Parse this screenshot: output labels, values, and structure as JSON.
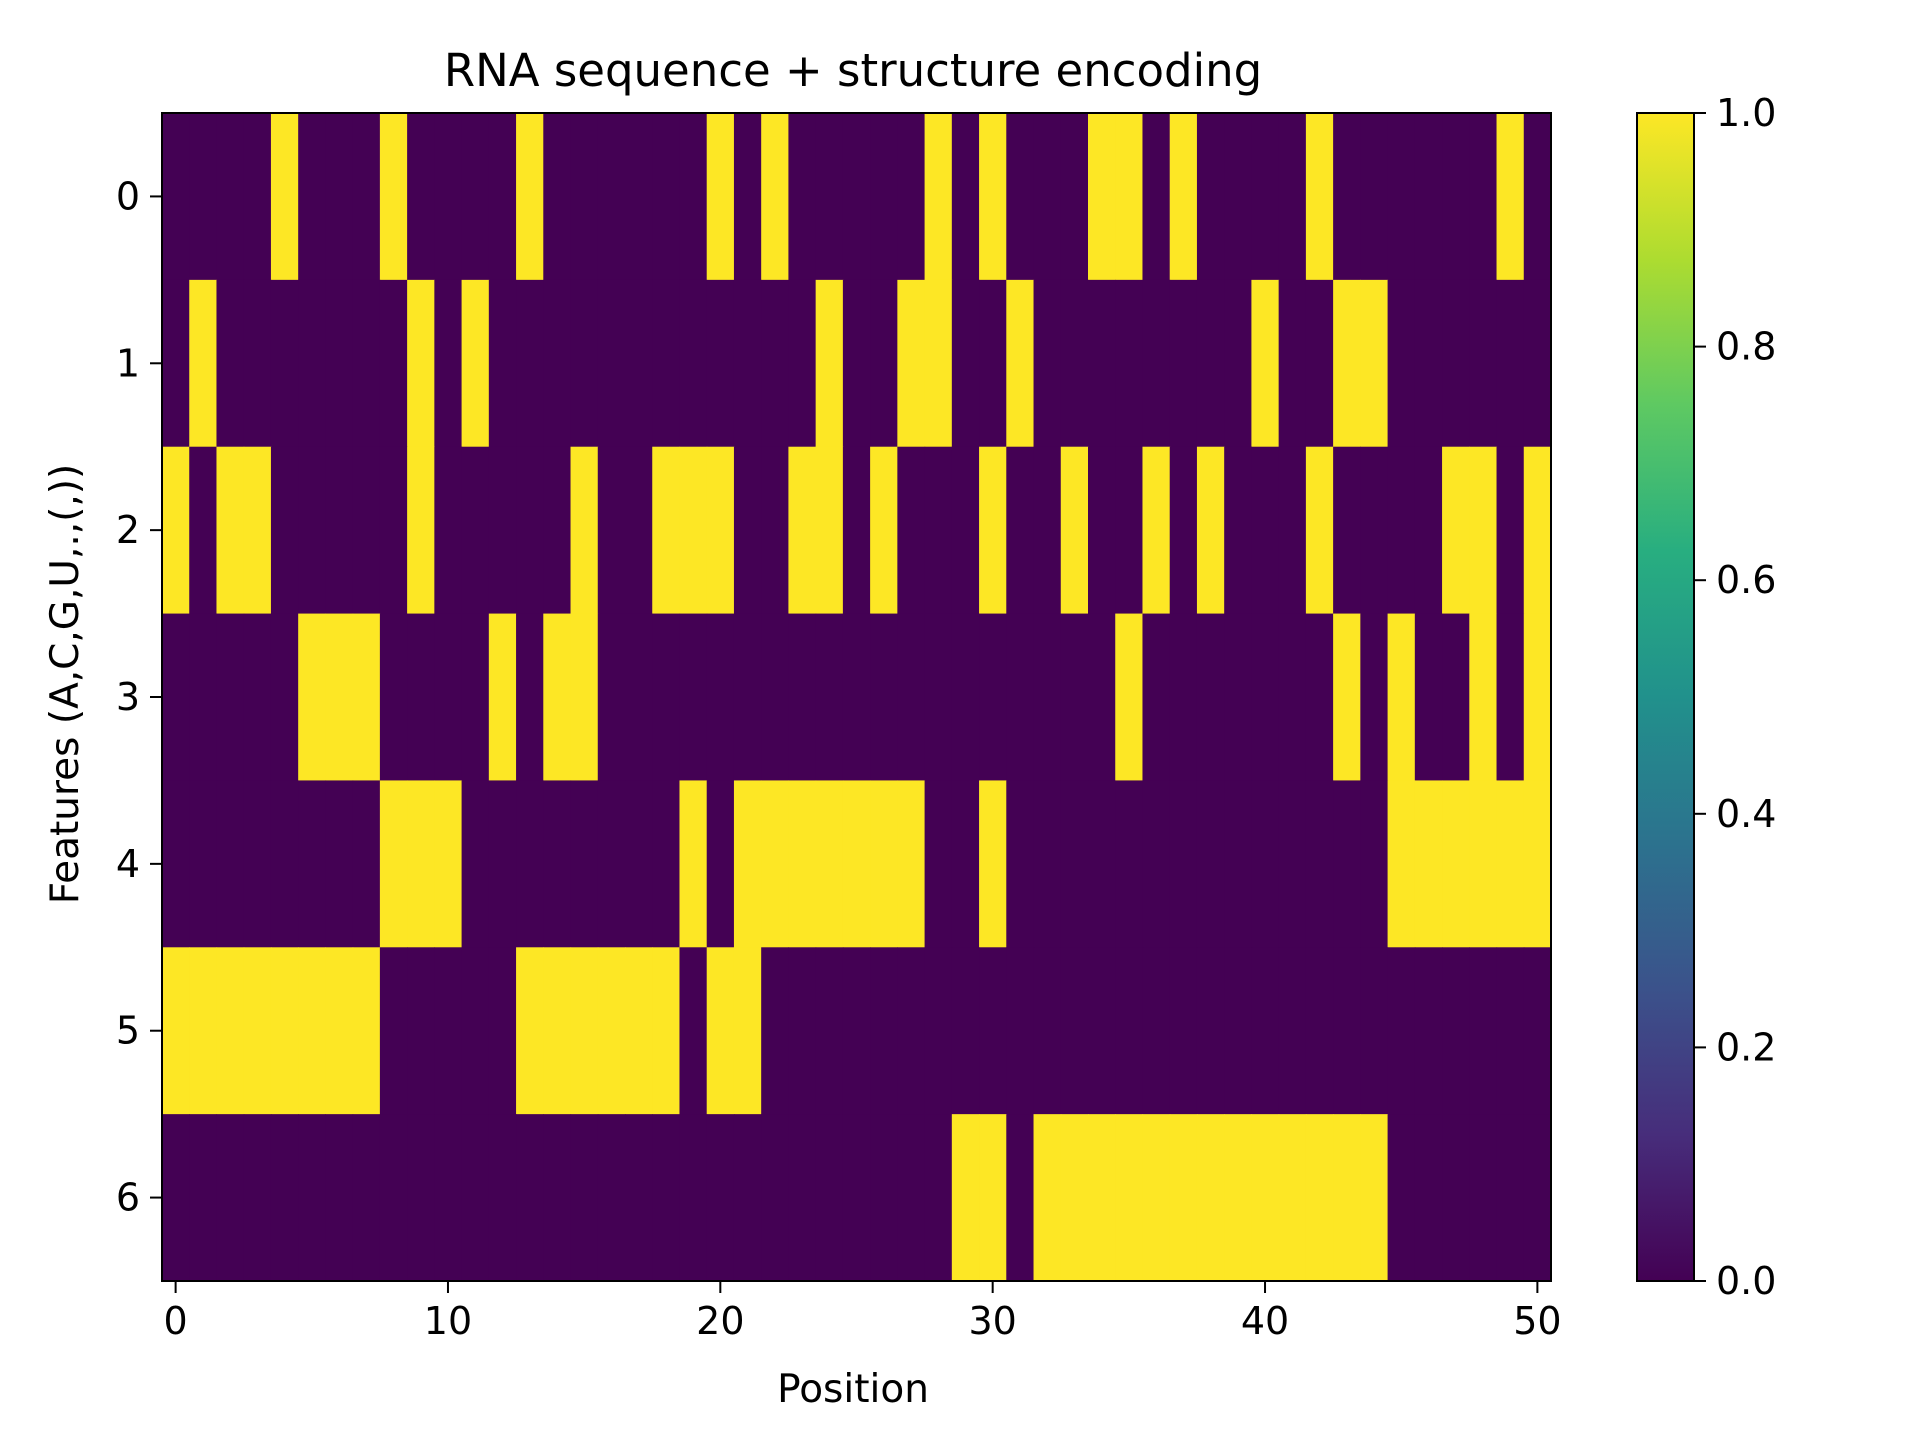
{
  "chart_data": {
    "type": "heatmap",
    "title": "RNA sequence + structure encoding",
    "xlabel": "Position",
    "ylabel": "Features (A,C,G,U,.,(,))",
    "x_ticks": [
      "0",
      "10",
      "20",
      "30",
      "40",
      "50"
    ],
    "y_ticks": [
      "0",
      "1",
      "2",
      "3",
      "4",
      "5",
      "6"
    ],
    "colorbar_ticks": [
      "0.0",
      "0.2",
      "0.4",
      "0.6",
      "0.8",
      "1.0"
    ],
    "xlim": [
      -0.5,
      50.5
    ],
    "ylim": [
      6.5,
      -0.5
    ],
    "vmin": 0,
    "vmax": 1,
    "colormap": "viridis",
    "low_color": "#440154",
    "high_color": "#fde725",
    "n_positions": 51,
    "rows": [
      "000010001000010000001010000010100011010000100000010",
      "010000000101000000000000100110010000000010011000000",
      "101100000100000100111001101000100100101000100001101",
      "000001110000101100000000000000000001000000010100101",
      "000000001110000000010111111100100000000000000111111",
      "111111110000011111101100000000000000000000000000000",
      "000000000000000000000000000001101111111111111000000"
    ]
  }
}
